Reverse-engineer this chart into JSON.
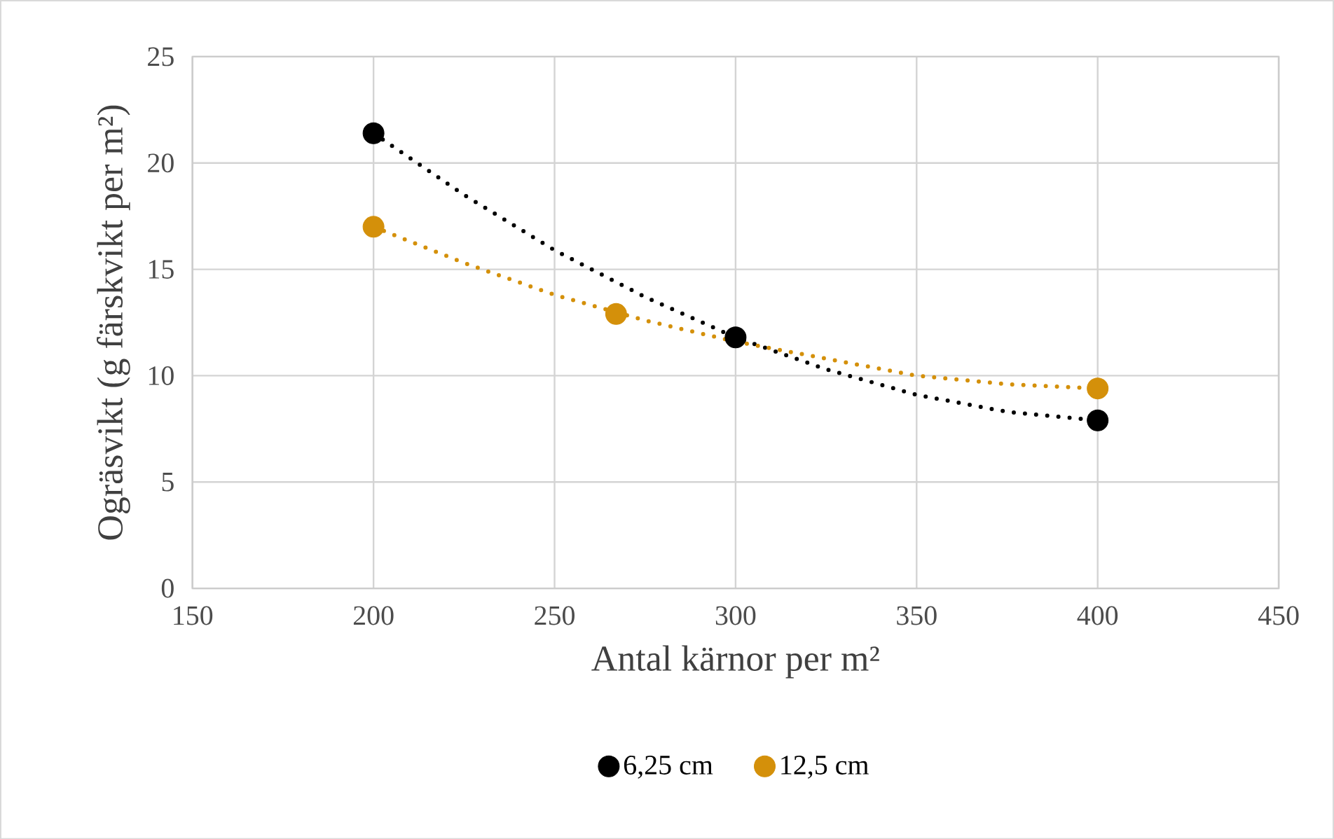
{
  "chart_data": {
    "type": "scatter",
    "xlabel": "Antal kärnor per m²",
    "ylabel": "Ogräsvikt (g färskvikt per m²)",
    "xlim": [
      150,
      450
    ],
    "xticks": [
      150,
      200,
      250,
      300,
      350,
      400,
      450
    ],
    "ylim": [
      0,
      25
    ],
    "yticks": [
      0,
      5,
      10,
      15,
      20,
      25
    ],
    "grid": true,
    "legend": "bottom",
    "series": [
      {
        "type": "line",
        "color": "#000000",
        "marker": "none",
        "line_style": "dotted",
        "x": [
          200,
          225,
          250,
          275,
          300,
          325,
          350,
          375,
          400
        ],
        "values": [
          21.4,
          18.5,
          15.9,
          13.7,
          11.8,
          10.3,
          9.1,
          8.3,
          7.9
        ]
      },
      {
        "type": "line",
        "color": "#d4900a",
        "marker": "none",
        "line_style": "dotted",
        "x": [
          200,
          225,
          250,
          275,
          300,
          325,
          350,
          375,
          400
        ],
        "values": [
          17.0,
          15.3,
          13.8,
          12.6,
          11.6,
          10.8,
          10.0,
          9.6,
          9.4
        ]
      },
      {
        "name": "6,25 cm",
        "color": "#000000",
        "marker": "circle",
        "x": [
          200,
          300,
          400
        ],
        "values": [
          21.4,
          11.8,
          7.9
        ]
      },
      {
        "name": "12,5 cm",
        "color": "#d4900a",
        "marker": "circle",
        "x": [
          200,
          267,
          400
        ],
        "values": [
          17.0,
          12.9,
          9.4
        ]
      }
    ]
  }
}
